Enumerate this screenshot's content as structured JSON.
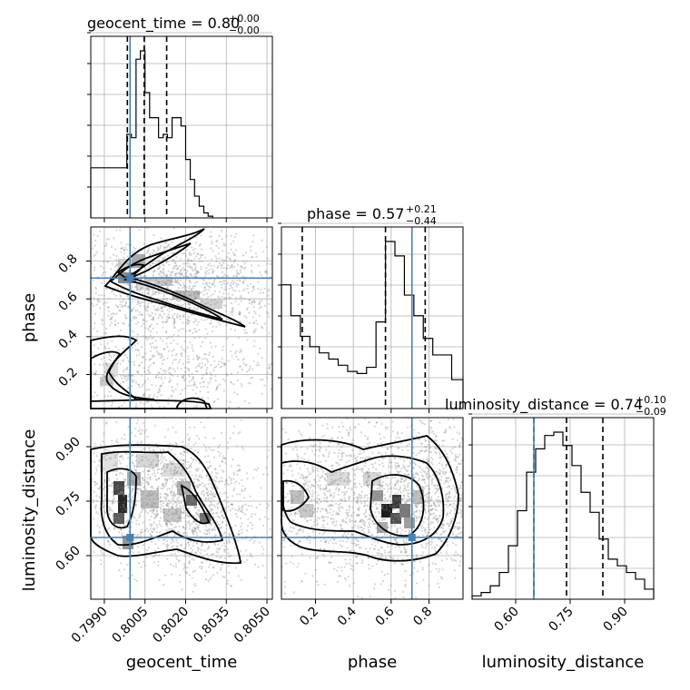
{
  "chart_data": {
    "type": "corner",
    "parameters": [
      "geocent_time",
      "phase",
      "luminosity_distance"
    ],
    "axis_labels": {
      "geocent_time": "geocent_time",
      "phase": "phase",
      "luminosity_distance": "luminosity_distance"
    },
    "titles": {
      "geocent_time": {
        "text": "geocent_time = 0.80",
        "plus": "+0.00",
        "minus": "−0.00"
      },
      "phase": {
        "text": "phase = 0.57",
        "plus": "+0.21",
        "minus": "−0.44"
      },
      "luminosity_distance": {
        "text": "luminosity_distance = 0.74",
        "plus": "+0.10",
        "minus": "−0.09"
      }
    },
    "ranges": {
      "geocent_time": [
        0.7985,
        0.8052
      ],
      "phase": [
        0.02,
        0.98
      ],
      "luminosity_distance": [
        0.48,
        0.98
      ]
    },
    "ticks": {
      "geocent_time": [
        0.799,
        0.8005,
        0.802,
        0.8035,
        0.805
      ],
      "phase": [
        0.2,
        0.4,
        0.6,
        0.8
      ],
      "luminosity_distance": [
        0.6,
        0.75,
        0.9
      ]
    },
    "tick_labels": {
      "geocent_time": [
        "0.7990",
        "0.8005",
        "0.8020",
        "0.8035",
        "0.8050"
      ],
      "phase_x": [
        "0.2",
        "0.4",
        "0.6",
        "0.8"
      ],
      "phase_y": [
        "0.2",
        "0.4",
        "0.6",
        "0.8"
      ],
      "luminosity_distance_x": [
        "0.60",
        "0.75",
        "0.90"
      ],
      "luminosity_distance_y": [
        "0.60",
        "0.75",
        "0.90"
      ]
    },
    "truths": {
      "geocent_time": 0.79995,
      "phase": 0.71,
      "luminosity_distance": 0.65
    },
    "quantiles": {
      "geocent_time": [
        0.79985,
        0.80047,
        0.8013
      ],
      "phase": [
        0.13,
        0.57,
        0.78
      ],
      "luminosity_distance": [
        0.65,
        0.74,
        0.84
      ]
    },
    "histograms": {
      "geocent_time": {
        "edges": [
          0.7985,
          0.79983,
          0.8,
          0.80017,
          0.80033,
          0.8005,
          0.80067,
          0.80083,
          0.801,
          0.80117,
          0.80133,
          0.8015,
          0.80167,
          0.80183,
          0.802,
          0.80217,
          0.80233,
          0.8025,
          0.80267,
          0.80283,
          0.803
        ],
        "counts": [
          0.3,
          0.5,
          0.48,
          0.95,
          1.0,
          0.75,
          0.6,
          0.6,
          0.48,
          0.5,
          0.48,
          0.6,
          0.6,
          0.55,
          0.35,
          0.23,
          0.13,
          0.07,
          0.03,
          0.01
        ]
      },
      "phase": {
        "edges": [
          0.02,
          0.07,
          0.12,
          0.17,
          0.22,
          0.27,
          0.32,
          0.37,
          0.42,
          0.47,
          0.52,
          0.57,
          0.62,
          0.67,
          0.72,
          0.77,
          0.82,
          0.87,
          0.92,
          0.98
        ],
        "counts": [
          0.6,
          0.45,
          0.35,
          0.3,
          0.27,
          0.24,
          0.21,
          0.18,
          0.17,
          0.2,
          0.42,
          0.81,
          0.74,
          0.55,
          0.45,
          0.34,
          0.26,
          0.26,
          0.14
        ]
      },
      "luminosity_distance": {
        "edges": [
          0.48,
          0.505,
          0.53,
          0.555,
          0.58,
          0.605,
          0.63,
          0.655,
          0.68,
          0.705,
          0.73,
          0.755,
          0.78,
          0.805,
          0.83,
          0.855,
          0.88,
          0.905,
          0.93,
          0.955,
          0.98
        ],
        "counts": [
          0.02,
          0.04,
          0.08,
          0.16,
          0.32,
          0.53,
          0.76,
          0.9,
          0.98,
          1.0,
          0.92,
          0.8,
          0.64,
          0.52,
          0.36,
          0.24,
          0.2,
          0.16,
          0.12,
          0.06
        ]
      }
    },
    "contour_levels": 3,
    "grid": true
  }
}
